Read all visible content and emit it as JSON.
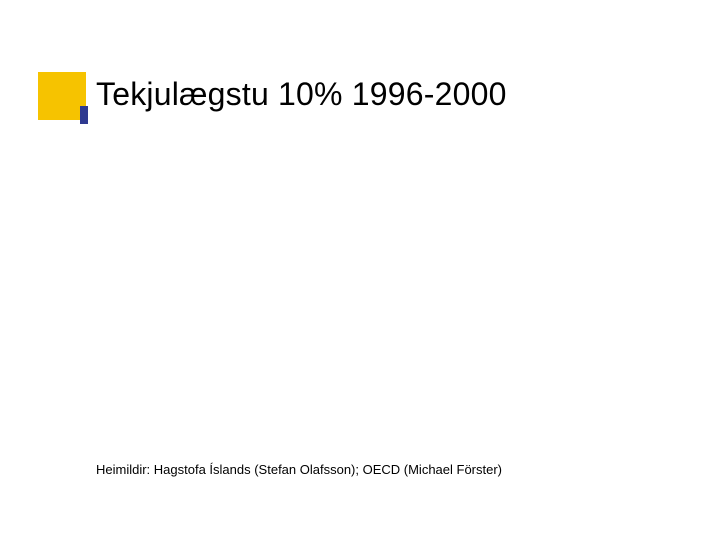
{
  "colors": {
    "accent_block": "#f6c300",
    "bullet_bar": "#2f3a90",
    "title_text": "#000000",
    "footer_text": "#000000",
    "background": "#ffffff"
  },
  "title": "Tekjulægstu 10% 1996-2000",
  "footer": "Heimildir: Hagstofa Íslands (Stefan Olafsson); OECD (Michael Förster)"
}
